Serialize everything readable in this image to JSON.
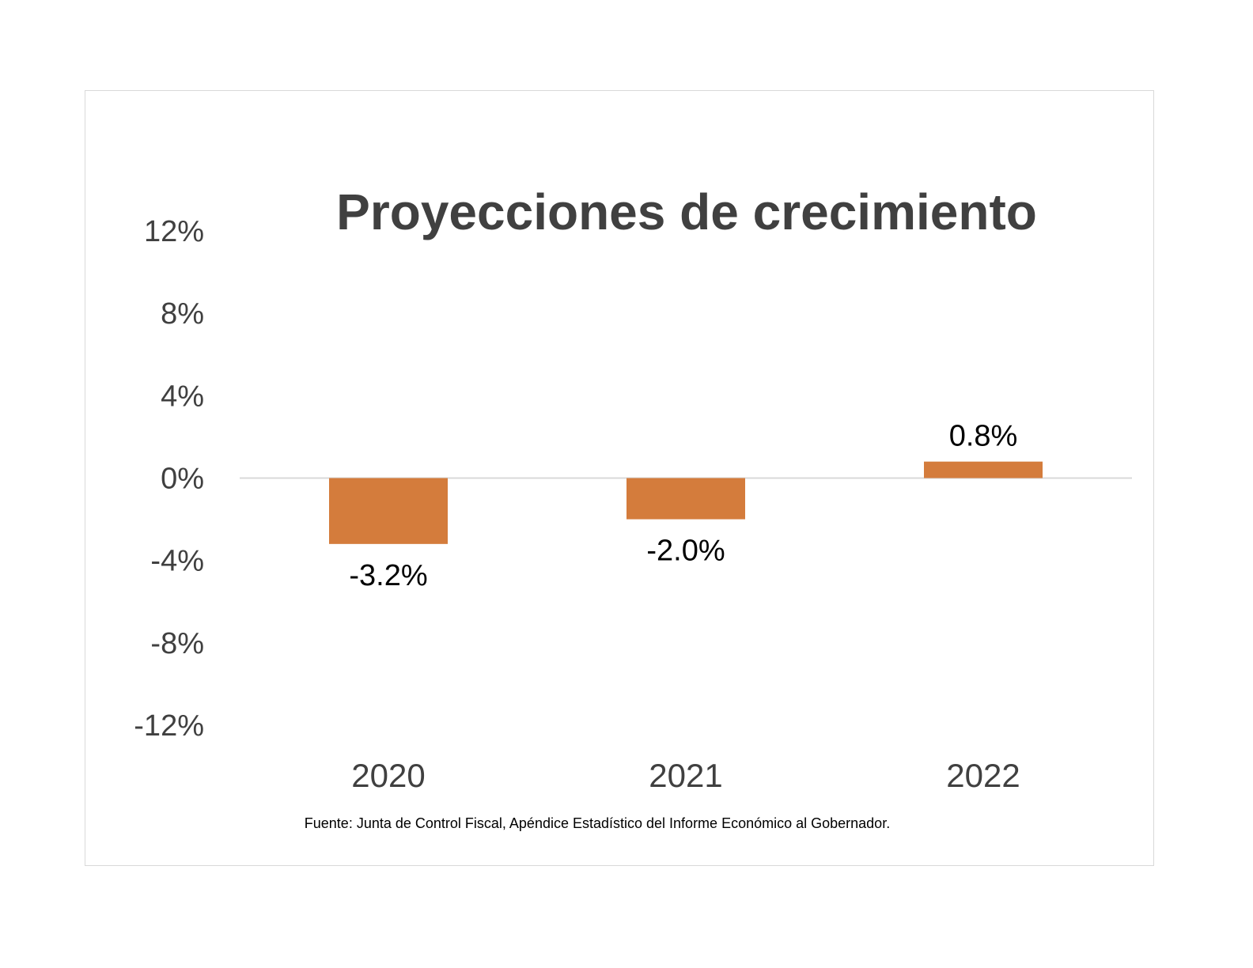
{
  "chart_data": {
    "type": "bar",
    "title": "Proyecciones de crecimiento",
    "categories": [
      "2020",
      "2021",
      "2022"
    ],
    "values": [
      -3.2,
      -2.0,
      0.8
    ],
    "data_labels": [
      "-3.2%",
      "-2.0%",
      "0.8%"
    ],
    "yticks": [
      12,
      8,
      4,
      0,
      -4,
      -8,
      -12
    ],
    "ytick_labels": [
      "12%",
      "8%",
      "4%",
      "0%",
      "-4%",
      "-8%",
      "-12%"
    ],
    "ylim": [
      -12,
      12
    ],
    "xlabel": "",
    "ylabel": "",
    "grid": false,
    "legend": "none",
    "bar_color": "#d47c3c",
    "axis_line_color": "#d9d9d9"
  },
  "source_note": "Fuente:  Junta de Control Fiscal, Apéndice Estadístico del Informe Económico al Gobernador."
}
